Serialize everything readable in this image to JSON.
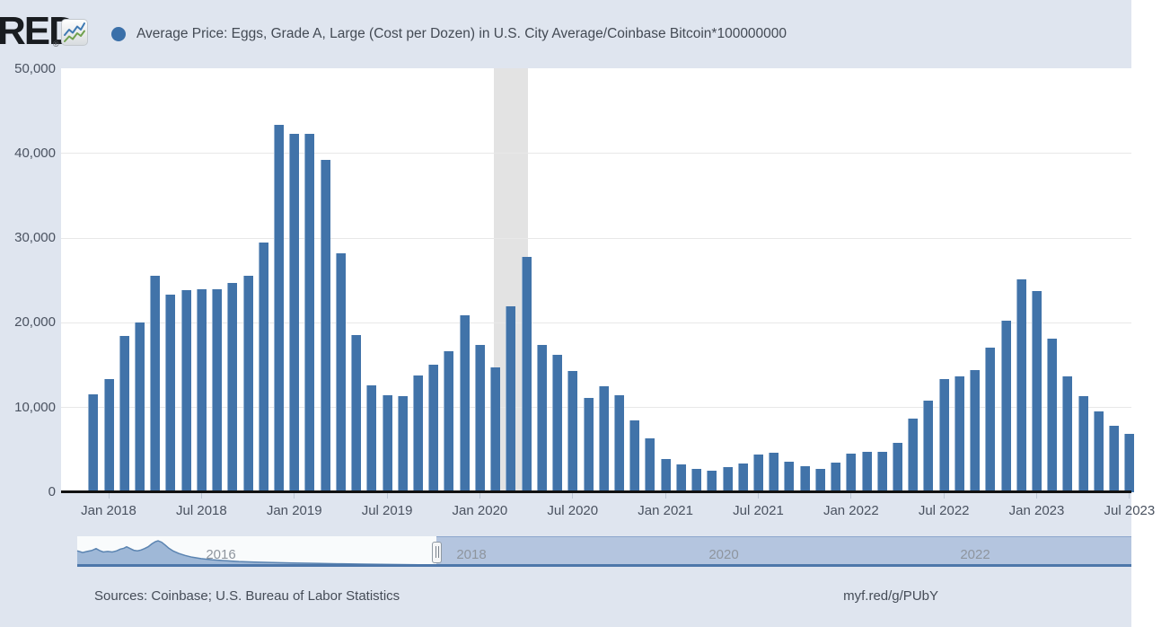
{
  "header": {
    "logo_text": "RED",
    "logo_registered": "®",
    "series_title": "Average Price: Eggs, Grade A, Large (Cost per Dozen) in U.S. City Average/Coinbase Bitcoin*100000000",
    "legend_marker_color": "#3b70a9"
  },
  "chart_data": {
    "type": "bar",
    "title": "Average Price: Eggs, Grade A, Large (Cost per Dozen) in U.S. City Average/Coinbase Bitcoin*100000000",
    "start_month": "2017-12",
    "end_month": "2023-07",
    "monthly_values": [
      11600,
      13400,
      18500,
      20000,
      25600,
      23300,
      23900,
      24000,
      24000,
      24700,
      25600,
      29500,
      43400,
      42300,
      42300,
      39200,
      28200,
      18600,
      12600,
      11500,
      11300,
      13800,
      15100,
      16700,
      20900,
      17400,
      14750,
      22000,
      27800,
      17400,
      16200,
      14350,
      11100,
      12500,
      11500,
      8450,
      6400,
      3900,
      3300,
      2800,
      2550,
      2950,
      3400,
      4500,
      4700,
      3650,
      3100,
      2750,
      3450,
      4550,
      4800,
      4750,
      5800,
      8700,
      10800,
      13400,
      13700,
      14400,
      17100,
      20300,
      25100,
      23800,
      18100,
      13700,
      11300,
      9500,
      7800,
      6900
    ],
    "x_tick_labels": [
      "Jan 2018",
      "Jul 2018",
      "Jan 2019",
      "Jul 2019",
      "Jan 2020",
      "Jul 2020",
      "Jan 2021",
      "Jul 2021",
      "Jan 2022",
      "Jul 2022",
      "Jan 2023",
      "Jul 2023"
    ],
    "y_tick_labels": [
      "0",
      "10,000",
      "20,000",
      "30,000",
      "40,000",
      "50,000"
    ],
    "ylim": [
      0,
      50000
    ],
    "grid": "horizontal",
    "legend_position": "top",
    "bar_color": "#4173a9",
    "recession_band": {
      "from_month": "2020-02",
      "to_month": "2020-04",
      "color": "#e3e3e3"
    }
  },
  "navigator": {
    "year_labels": [
      {
        "label": "2016",
        "x": 246
      },
      {
        "label": "2018",
        "x": 525
      },
      {
        "label": "2020",
        "x": 806
      },
      {
        "label": "2022",
        "x": 1086
      }
    ],
    "area_color": "#8fabd0",
    "line_color": "#5b84b1",
    "area_profile": [
      [
        86,
        0.54
      ],
      [
        92,
        0.48
      ],
      [
        97,
        0.52
      ],
      [
        102,
        0.55
      ],
      [
        107,
        0.62
      ],
      [
        111,
        0.55
      ],
      [
        115,
        0.5
      ],
      [
        120,
        0.52
      ],
      [
        125,
        0.5
      ],
      [
        130,
        0.54
      ],
      [
        134,
        0.6
      ],
      [
        138,
        0.63
      ],
      [
        141,
        0.68
      ],
      [
        145,
        0.62
      ],
      [
        149,
        0.56
      ],
      [
        153,
        0.54
      ],
      [
        157,
        0.57
      ],
      [
        161,
        0.62
      ],
      [
        165,
        0.68
      ],
      [
        169,
        0.78
      ],
      [
        173,
        0.86
      ],
      [
        176,
        0.89
      ],
      [
        180,
        0.84
      ],
      [
        184,
        0.74
      ],
      [
        188,
        0.63
      ],
      [
        193,
        0.53
      ],
      [
        199,
        0.45
      ],
      [
        206,
        0.38
      ],
      [
        214,
        0.32
      ],
      [
        224,
        0.27
      ],
      [
        236,
        0.23
      ],
      [
        250,
        0.2
      ],
      [
        266,
        0.17
      ],
      [
        284,
        0.15
      ],
      [
        304,
        0.135
      ],
      [
        326,
        0.12
      ],
      [
        350,
        0.105
      ],
      [
        376,
        0.09
      ],
      [
        404,
        0.078
      ],
      [
        434,
        0.066
      ],
      [
        466,
        0.056
      ],
      [
        500,
        0.047
      ],
      [
        536,
        0.04
      ],
      [
        574,
        0.034
      ],
      [
        612,
        0.03
      ],
      [
        640,
        0.035
      ],
      [
        652,
        0.05
      ],
      [
        660,
        0.056
      ],
      [
        668,
        0.05
      ],
      [
        678,
        0.038
      ],
      [
        692,
        0.028
      ],
      [
        710,
        0.022
      ],
      [
        734,
        0.018
      ],
      [
        762,
        0.015
      ],
      [
        794,
        0.014
      ],
      [
        830,
        0.015
      ],
      [
        862,
        0.018
      ],
      [
        886,
        0.022
      ],
      [
        904,
        0.026
      ],
      [
        920,
        0.022
      ],
      [
        938,
        0.017
      ],
      [
        958,
        0.014
      ],
      [
        982,
        0.012
      ],
      [
        1010,
        0.011
      ],
      [
        1040,
        0.011
      ],
      [
        1072,
        0.012
      ],
      [
        1104,
        0.014
      ],
      [
        1136,
        0.018
      ],
      [
        1164,
        0.025
      ],
      [
        1188,
        0.032
      ],
      [
        1206,
        0.036
      ],
      [
        1222,
        0.032
      ],
      [
        1238,
        0.026
      ],
      [
        1250,
        0.022
      ],
      [
        1260,
        0.02
      ]
    ]
  },
  "footer": {
    "sources": "Sources: Coinbase; U.S. Bureau of Labor Statistics",
    "short_url": "myf.red/g/PUbY"
  }
}
